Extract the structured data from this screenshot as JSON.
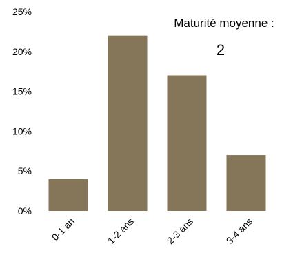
{
  "chart_data": {
    "type": "bar",
    "categories": [
      "0-1 an",
      "1-2 ans",
      "2-3 ans",
      "3-4 ans"
    ],
    "values": [
      4,
      22,
      17,
      7
    ],
    "ylim": [
      0,
      25
    ],
    "yticks": [
      0,
      5,
      10,
      15,
      20,
      25
    ],
    "ytick_labels": [
      "0%",
      "5%",
      "10%",
      "15%",
      "20%",
      "25%"
    ],
    "grid": false,
    "bar_color": "#85765a",
    "annotation": {
      "label": "Maturité moyenne :",
      "value": "2"
    }
  }
}
